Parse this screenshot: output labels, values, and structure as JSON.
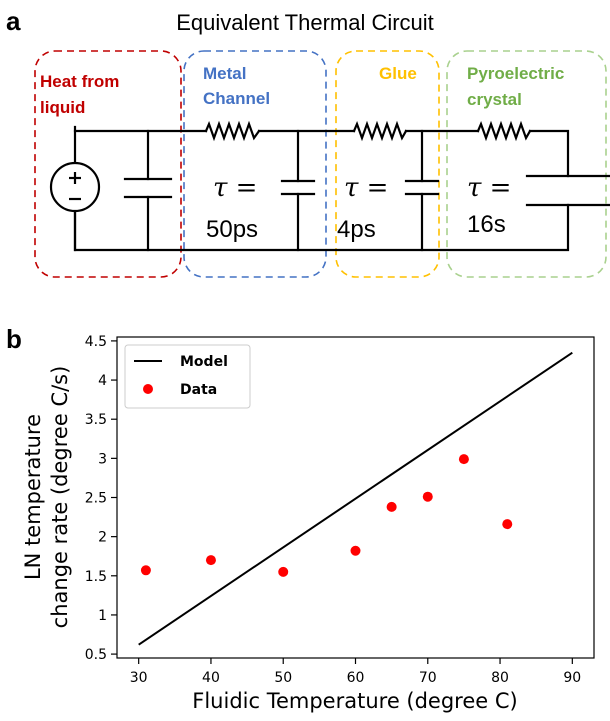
{
  "panel_a": {
    "label": "a",
    "title": "Equivalent Thermal Circuit",
    "regions": [
      {
        "name": "heat-from-liquid",
        "lines": [
          "Heat from",
          "liquid"
        ],
        "color": "#c00000"
      },
      {
        "name": "metal-channel",
        "lines": [
          "Metal",
          "Channel"
        ],
        "color": "#4472c4"
      },
      {
        "name": "glue",
        "lines": [
          "Glue"
        ],
        "color": "#ffc000"
      },
      {
        "name": "pyroelectric-crystal",
        "lines": [
          "Pyroelectric",
          "crystal"
        ],
        "color": "#70ad47"
      }
    ],
    "tau_symbol": "τ =",
    "tau_values": [
      "50ps",
      "4ps",
      "16s"
    ]
  },
  "panel_b": {
    "label": "b",
    "chart_data": {
      "type": "scatter",
      "xlabel": "Fluidic Temperature (degree C)",
      "ylabel_lines": [
        "LN temperature",
        "change rate (degree C/s)"
      ],
      "xlim": [
        27,
        93
      ],
      "ylim": [
        0.45,
        4.55
      ],
      "x_ticks": [
        30,
        40,
        50,
        60,
        70,
        80,
        90
      ],
      "y_ticks": [
        0.5,
        1.0,
        1.5,
        2.0,
        2.5,
        3.0,
        3.5,
        4.0,
        4.5
      ],
      "legend": {
        "placement": "top-left",
        "entries": [
          "Model",
          "Data"
        ]
      },
      "series": [
        {
          "name": "Model",
          "kind": "line",
          "color": "#000000",
          "points": [
            [
              30,
              0.62
            ],
            [
              90,
              4.35
            ]
          ]
        },
        {
          "name": "Data",
          "kind": "scatter",
          "color": "#ff0000",
          "points": [
            [
              31,
              1.57
            ],
            [
              40,
              1.7
            ],
            [
              50,
              1.55
            ],
            [
              60,
              1.82
            ],
            [
              65,
              2.38
            ],
            [
              70,
              2.51
            ],
            [
              75,
              2.99
            ],
            [
              81,
              2.16
            ]
          ]
        }
      ]
    }
  }
}
